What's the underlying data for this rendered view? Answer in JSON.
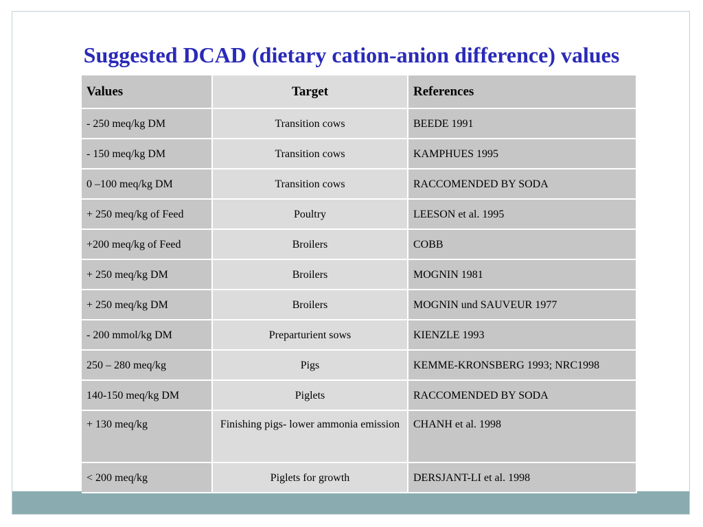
{
  "slide": {
    "title": "Suggested DCAD (dietary cation-anion difference) values"
  },
  "table": {
    "headers": [
      "Values",
      "Target",
      "References"
    ],
    "rows": [
      {
        "value": "- 250 meq/kg DM",
        "target": "Transition cows",
        "reference": "BEEDE 1991"
      },
      {
        "value": "- 150 meq/kg DM",
        "target": "Transition cows",
        "reference": "KAMPHUES 1995"
      },
      {
        "value": "0 –100 meq/kg DM",
        "target": "Transition cows",
        "reference": "RACCOMENDED BY SODA"
      },
      {
        "value": "+ 250 meq/kg of Feed",
        "target": "Poultry",
        "reference": "LEESON et al. 1995"
      },
      {
        "value": "+200 meq/kg of Feed",
        "target": "Broilers",
        "reference": "COBB"
      },
      {
        "value": "+ 250 meq/kg DM",
        "target": "Broilers",
        "reference": "MOGNIN 1981"
      },
      {
        "value": "+ 250 meq/kg DM",
        "target": "Broilers",
        "reference": "MOGNIN und SAUVEUR 1977"
      },
      {
        "value": "- 200 mmol/kg DM",
        "target": "Preparturient sows",
        "reference": "KIENZLE 1993"
      },
      {
        "value": "250 – 280 meq/kg",
        "target": "Pigs",
        "reference": "KEMME-KRONSBERG 1993; NRC1998"
      },
      {
        "value": "140-150 meq/kg DM",
        "target": "Piglets",
        "reference": "RACCOMENDED BY SODA"
      },
      {
        "value": "+ 130 meq/kg",
        "target": "Finishing pigs- lower ammonia emission",
        "reference": "CHANH et al. 1998"
      },
      {
        "value": "< 200 meq/kg",
        "target": "Piglets for growth",
        "reference": "DERSJANT-LI et al. 1998"
      }
    ]
  },
  "colors": {
    "title": "#2a2ab8",
    "footer_band": "#8aacb0",
    "cell_dark": "#c6c6c6",
    "cell_light": "#dcdcdc"
  }
}
